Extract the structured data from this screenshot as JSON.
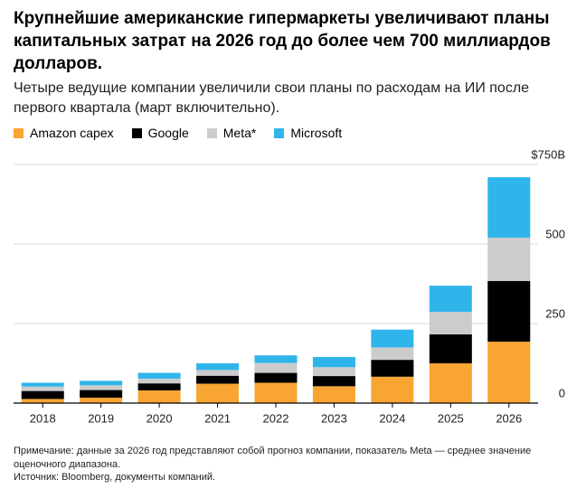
{
  "chart_data": {
    "type": "stacked_bar",
    "title": "Крупнейшие американские гипермаркеты увеличивают планы капитальных затрат на 2026 год до более чем 700 миллиардов долларов.",
    "subtitle": "Четыре ведущие компании увеличили свои планы по расходам на ИИ после первого квартала (март включительно).",
    "categories": [
      "2018",
      "2019",
      "2020",
      "2021",
      "2022",
      "2023",
      "2024",
      "2025",
      "2026"
    ],
    "series": [
      {
        "name": "Amazon capex",
        "color": "#f9a534",
        "values": [
          13,
          17,
          40,
          61,
          64,
          53,
          83,
          125,
          193
        ]
      },
      {
        "name": "Google",
        "color": "#000000",
        "values": [
          25,
          24,
          22,
          25,
          31,
          32,
          53,
          91,
          191
        ]
      },
      {
        "name": "Meta*",
        "color": "#cccccc",
        "values": [
          14,
          15,
          15,
          18,
          31,
          28,
          39,
          71,
          136
        ]
      },
      {
        "name": "Microsoft",
        "color": "#2fb5ea",
        "values": [
          12,
          14,
          18,
          21,
          24,
          32,
          56,
          82,
          190
        ]
      }
    ],
    "ylim": [
      0,
      750
    ],
    "yticks": [
      0,
      250,
      500,
      {
        "value": 750,
        "label": "$750B"
      }
    ],
    "grid": true,
    "legend": "top-left",
    "note": "Примечание: данные за 2026 год представляют собой прогноз компании, показатель Meta — среднее значение оценочного диапазона.",
    "source": "Источник: Bloomberg, документы компаний."
  }
}
